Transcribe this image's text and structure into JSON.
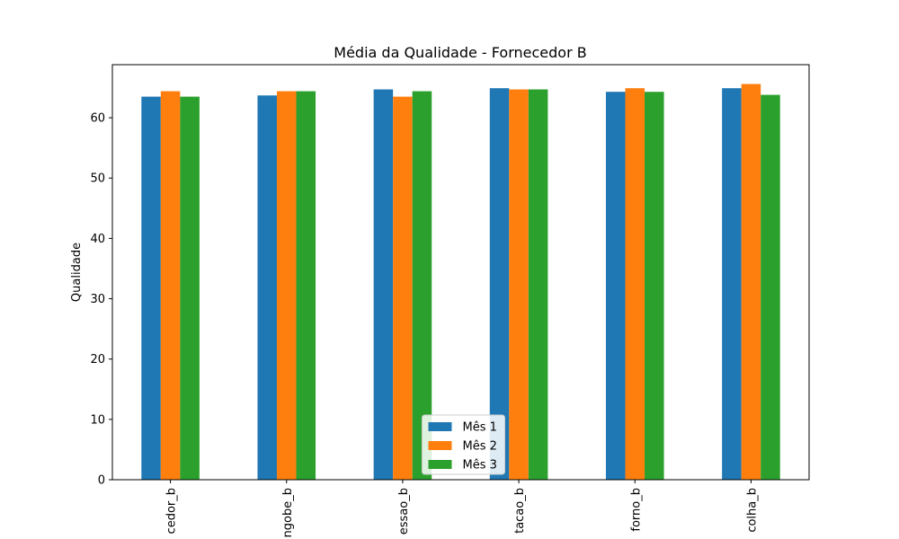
{
  "chart_data": {
    "type": "bar",
    "title": "Média da Qualidade - Fornecedor B",
    "xlabel": "",
    "ylabel": "Qualidade",
    "ylim": [
      0,
      68.8
    ],
    "yticks": [
      0,
      10,
      20,
      30,
      40,
      50,
      60
    ],
    "grid": false,
    "legend_position": "lower-center",
    "categories": [
      "cedor_b",
      "ngobe_b",
      "essao_b",
      "tacao_b",
      "forno_b",
      "colha_b"
    ],
    "series": [
      {
        "name": "Mês 1",
        "color": "#1f77b4",
        "values": [
          63.5,
          63.7,
          64.7,
          64.9,
          64.3,
          64.9
        ]
      },
      {
        "name": "Mês 2",
        "color": "#ff7f0e",
        "values": [
          64.4,
          64.4,
          63.5,
          64.7,
          64.9,
          65.6
        ]
      },
      {
        "name": "Mês 3",
        "color": "#2ca02c",
        "values": [
          63.5,
          64.4,
          64.4,
          64.7,
          64.3,
          63.8
        ]
      }
    ]
  }
}
